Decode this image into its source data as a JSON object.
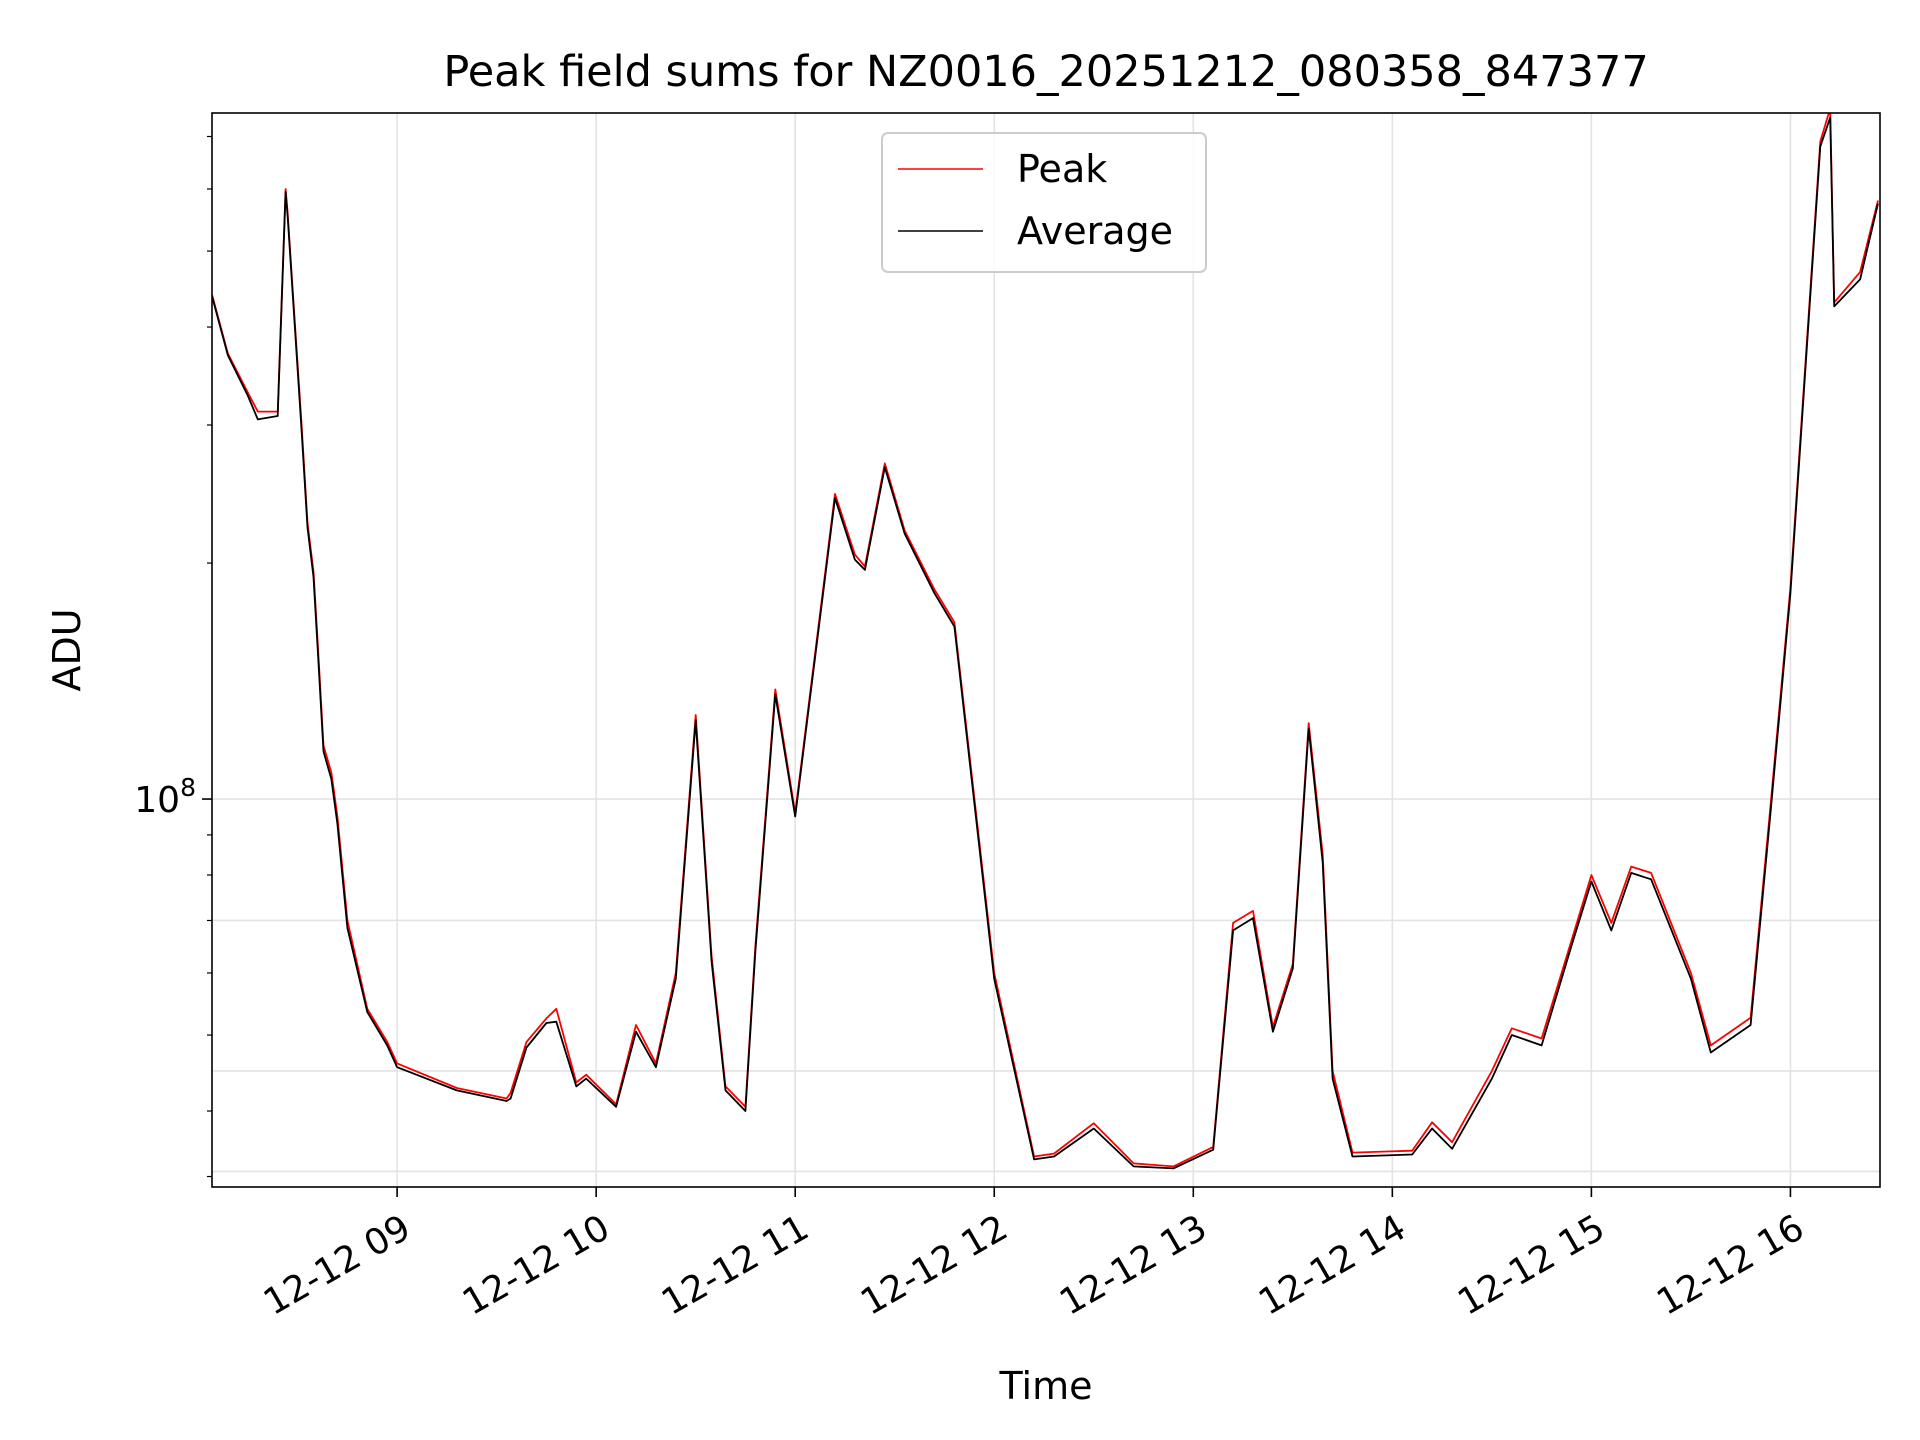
{
  "chart_data": {
    "type": "line",
    "title": "Peak field sums for NZ0016_20251212_080358_847377",
    "xlabel": "Time",
    "ylabel": "ADU",
    "x_unit": "hours since 2025-12-12 00:00",
    "xlim": [
      8.07,
      16.45
    ],
    "y_scale": "log",
    "ylim": [
      32000000,
      750000000
    ],
    "grid": true,
    "legend_position": "top-center",
    "x_ticks": [
      {
        "value": 9,
        "label": "12-12 09"
      },
      {
        "value": 10,
        "label": "12-12 10"
      },
      {
        "value": 11,
        "label": "12-12 11"
      },
      {
        "value": 12,
        "label": "12-12 12"
      },
      {
        "value": 13,
        "label": "12-12 13"
      },
      {
        "value": 14,
        "label": "12-12 14"
      },
      {
        "value": 15,
        "label": "12-12 15"
      },
      {
        "value": 16,
        "label": "12-12 16"
      }
    ],
    "y_ticks": [
      {
        "value": 100000000,
        "label_base": "10",
        "label_exp": "8"
      }
    ],
    "y_minor_ticks": [
      33000000,
      40000000,
      50000000,
      60000000,
      70000000,
      80000000,
      90000000,
      200000000,
      300000000,
      400000000,
      500000000,
      600000000,
      700000000
    ],
    "y_gridlines": [
      33500000,
      45000000,
      70000000,
      100000000
    ],
    "x": [
      8.07,
      8.15,
      8.25,
      8.3,
      8.4,
      8.44,
      8.45,
      8.52,
      8.55,
      8.58,
      8.6,
      8.63,
      8.67,
      8.7,
      8.75,
      8.85,
      8.95,
      9.0,
      9.3,
      9.55,
      9.57,
      9.65,
      9.75,
      9.8,
      9.9,
      9.95,
      10.1,
      10.2,
      10.3,
      10.4,
      10.5,
      10.58,
      10.65,
      10.75,
      10.8,
      10.9,
      11.0,
      11.2,
      11.3,
      11.35,
      11.45,
      11.55,
      11.7,
      11.8,
      12.0,
      12.2,
      12.3,
      12.5,
      12.7,
      12.9,
      13.1,
      13.2,
      13.3,
      13.4,
      13.5,
      13.58,
      13.65,
      13.7,
      13.8,
      14.1,
      14.2,
      14.3,
      14.5,
      14.6,
      14.75,
      14.9,
      15.0,
      15.1,
      15.2,
      15.3,
      15.5,
      15.6,
      15.8,
      15.9,
      16.0,
      16.15,
      16.2,
      16.22,
      16.35,
      16.44
    ],
    "series": [
      {
        "name": "Peak",
        "color": "#ff0000",
        "values": [
          440000000,
          370000000,
          330000000,
          312000000,
          312000000,
          600000000,
          560000000,
          300000000,
          225000000,
          195000000,
          160000000,
          117000000,
          108000000,
          95000000,
          70000000,
          54000000,
          49000000,
          46000000,
          42800000,
          41500000,
          42200000,
          49000000,
          52500000,
          54000000,
          43500000,
          44500000,
          40800000,
          51500000,
          46000000,
          60000000,
          128000000,
          63000000,
          43000000,
          40500000,
          65000000,
          138000000,
          96000000,
          245000000,
          205000000,
          198000000,
          268000000,
          220000000,
          185000000,
          168000000,
          60000000,
          35000000,
          35300000,
          38600000,
          34300000,
          34000000,
          36000000,
          69500000,
          72000000,
          51200000,
          61600000,
          125000000,
          85000000,
          45000000,
          35400000,
          35600000,
          38700000,
          36500000,
          45000000,
          51000000,
          49500000,
          66000000,
          80000000,
          69500000,
          82000000,
          80500000,
          60000000,
          48500000,
          52600000,
          98000000,
          186000000,
          690000000,
          760000000,
          430000000,
          470000000,
          580000000
        ]
      },
      {
        "name": "Average",
        "color": "#000000",
        "values": [
          438000000,
          368000000,
          327000000,
          305000000,
          308000000,
          595000000,
          555000000,
          295000000,
          222000000,
          192000000,
          157000000,
          115000000,
          106000000,
          93000000,
          68500000,
          53500000,
          48500000,
          45500000,
          42500000,
          41200000,
          41500000,
          48200000,
          51800000,
          52000000,
          43000000,
          44000000,
          40500000,
          50500000,
          45500000,
          59000000,
          126000000,
          62000000,
          42500000,
          40000000,
          64000000,
          136000000,
          95000000,
          242000000,
          202000000,
          196000000,
          265000000,
          218000000,
          183000000,
          166000000,
          59000000,
          34700000,
          35000000,
          38000000,
          34000000,
          33800000,
          35700000,
          68000000,
          70500000,
          50500000,
          60800000,
          123000000,
          83000000,
          44000000,
          35000000,
          35200000,
          38000000,
          35800000,
          44000000,
          50000000,
          48500000,
          65000000,
          78500000,
          68000000,
          80500000,
          79000000,
          59000000,
          47500000,
          51500000,
          96000000,
          183000000,
          680000000,
          740000000,
          425000000,
          460000000,
          575000000
        ]
      }
    ]
  }
}
